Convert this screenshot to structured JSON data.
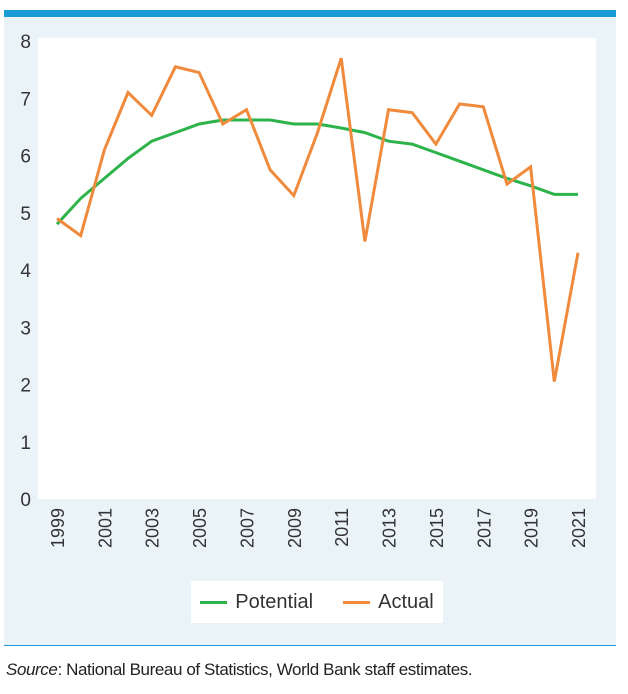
{
  "chart_data": {
    "type": "line",
    "title": "",
    "xlabel": "",
    "ylabel": "",
    "x": [
      1999,
      2000,
      2001,
      2002,
      2003,
      2004,
      2005,
      2006,
      2007,
      2008,
      2009,
      2010,
      2011,
      2012,
      2013,
      2014,
      2015,
      2016,
      2017,
      2018,
      2019,
      2020,
      2021
    ],
    "x_tick_labels": [
      "1999",
      "2001",
      "2003",
      "2005",
      "2007",
      "2009",
      "2011",
      "2013",
      "2015",
      "2017",
      "2019",
      "2021"
    ],
    "y_tick_labels": [
      "0",
      "1",
      "2",
      "3",
      "4",
      "5",
      "6",
      "7",
      "8"
    ],
    "ylim": [
      0,
      8
    ],
    "grid": false,
    "legend_position": "bottom-center",
    "series": [
      {
        "name": "Potential",
        "color": "#2db34a",
        "values": [
          4.8,
          5.25,
          5.6,
          5.95,
          6.25,
          6.4,
          6.55,
          6.62,
          6.62,
          6.62,
          6.55,
          6.55,
          6.48,
          6.4,
          6.25,
          6.2,
          6.05,
          5.9,
          5.75,
          5.6,
          5.47,
          5.32,
          5.32
        ]
      },
      {
        "name": "Actual",
        "color": "#f08a3c",
        "values": [
          4.9,
          4.6,
          6.1,
          7.1,
          6.7,
          7.55,
          7.45,
          6.55,
          6.8,
          5.75,
          5.3,
          6.4,
          7.7,
          4.5,
          6.8,
          6.75,
          6.2,
          6.9,
          6.85,
          5.5,
          5.8,
          2.05,
          4.3
        ]
      }
    ]
  },
  "source": {
    "label": "Source",
    "text": ": National Bureau of Statistics, World Bank staff estimates."
  }
}
